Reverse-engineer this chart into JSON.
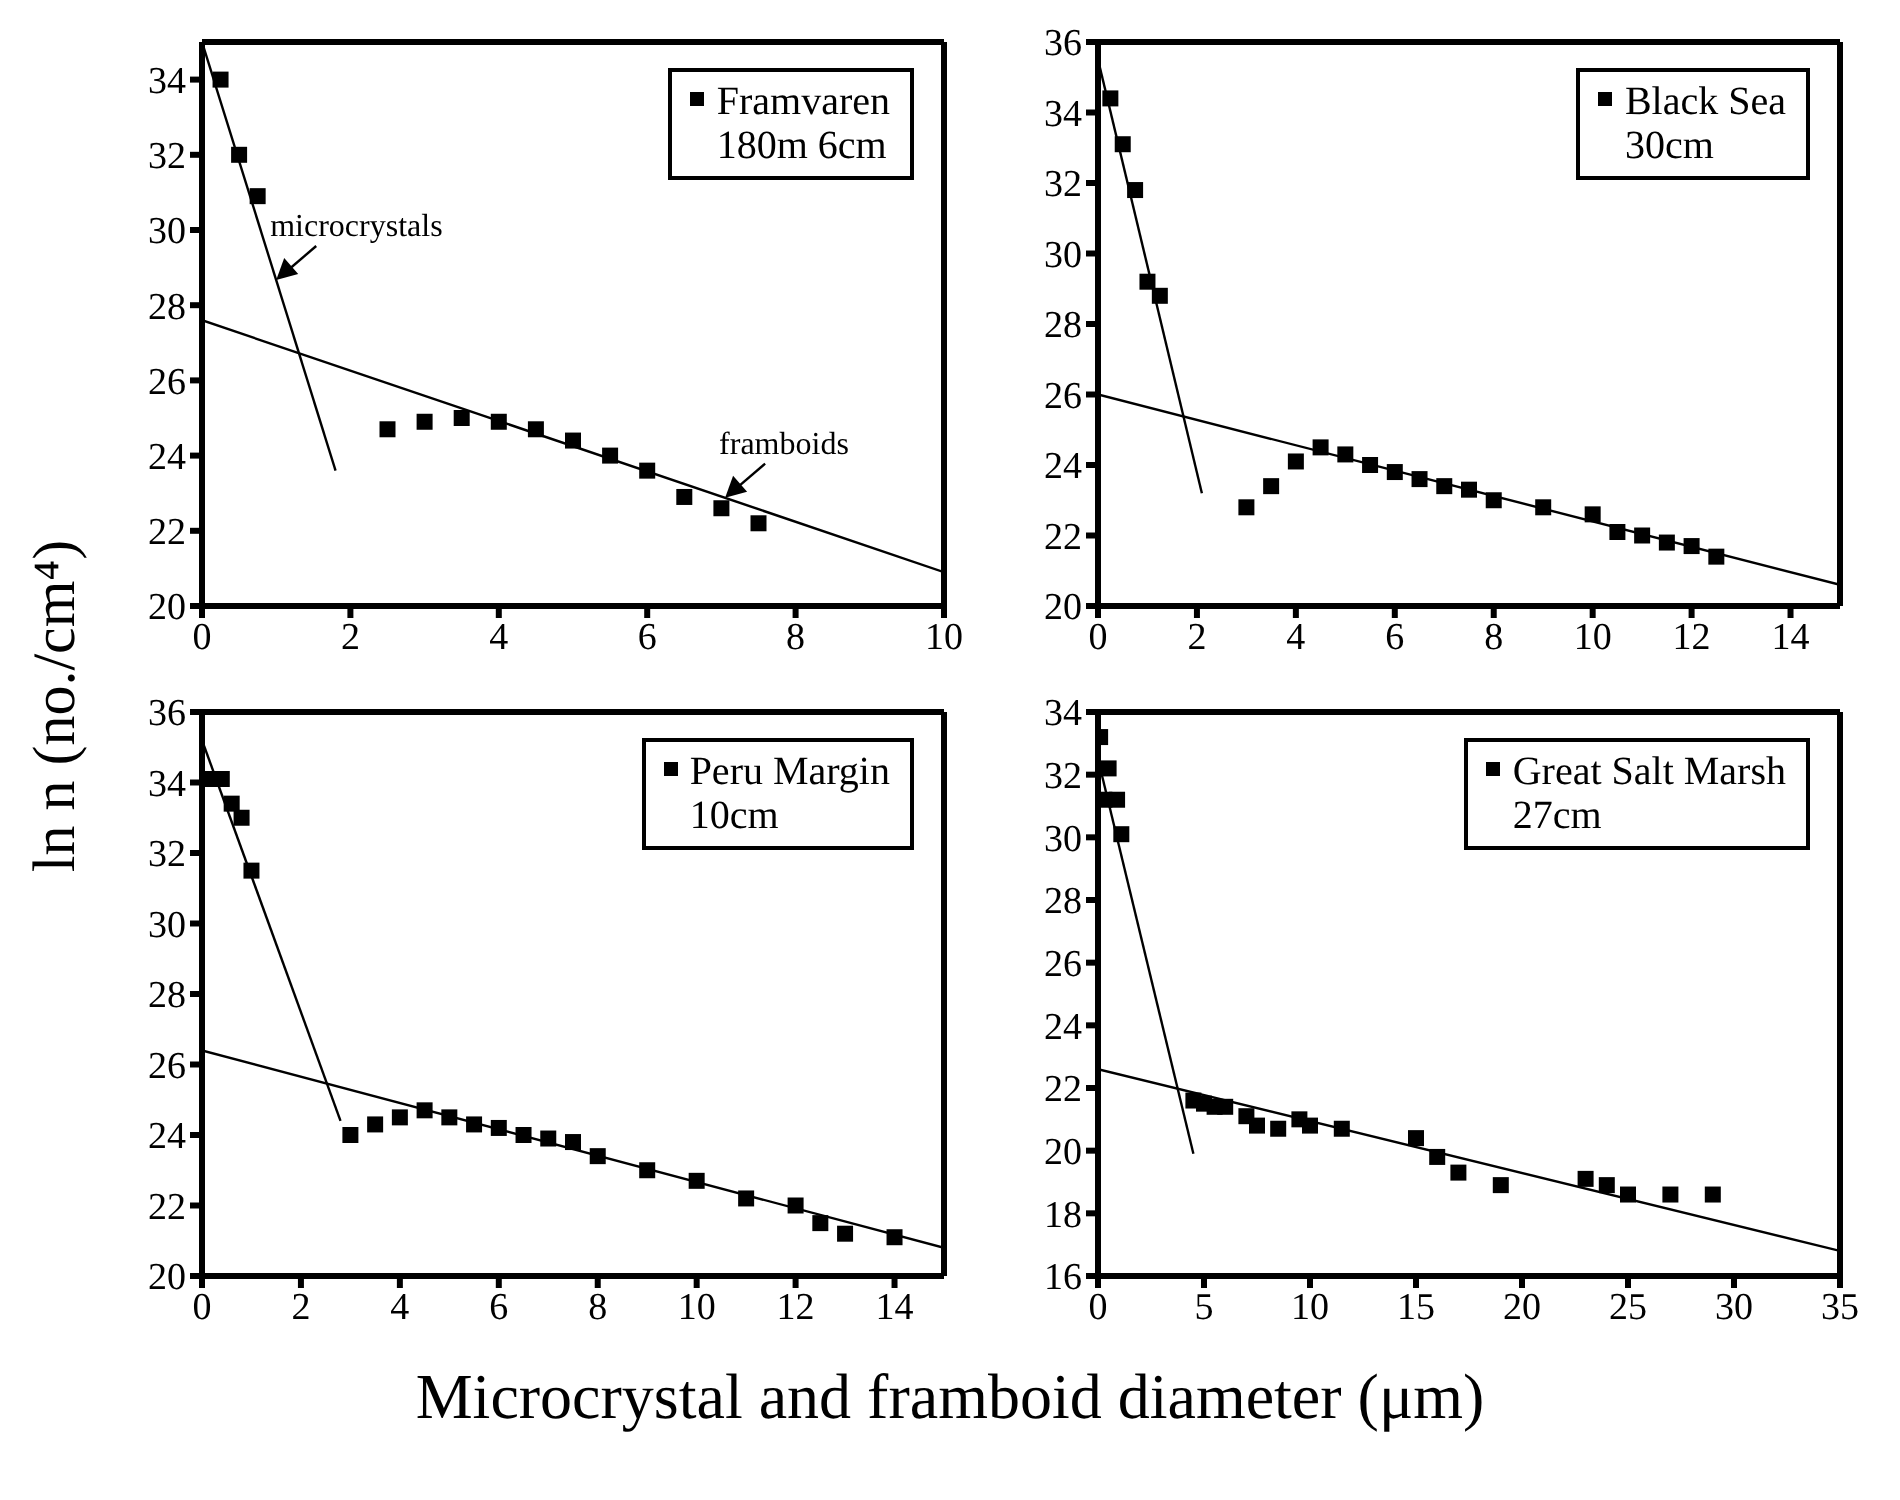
{
  "chart_data": [
    {
      "type": "scatter",
      "xlabel": "Microcrystal and framboid diameter (μm)",
      "ylabel": "ln n (no./cm⁴)",
      "xlim": [
        0,
        10
      ],
      "xticks": [
        0,
        2,
        4,
        6,
        8,
        10
      ],
      "ylim": [
        20,
        35
      ],
      "yticks": [
        20,
        22,
        24,
        26,
        28,
        30,
        32,
        34
      ],
      "legend": "top right",
      "annotations": [
        {
          "text": "microcrystals",
          "x": 1.0,
          "y": 28.67
        },
        {
          "text": "framboids",
          "x": 7.05,
          "y": 22.88
        }
      ],
      "series": [
        {
          "name": "Framvaren\n180m 6cm",
          "color": "#000000",
          "marker": "square",
          "x": [
            0.25,
            0.5,
            0.75,
            2.5,
            3,
            3.5,
            4,
            4.5,
            5,
            5.5,
            6,
            6.5,
            7,
            7.5
          ],
          "values": [
            34.0,
            32.0,
            30.9,
            24.7,
            24.9,
            25.0,
            24.9,
            24.7,
            24.4,
            24.0,
            23.6,
            22.9,
            22.6,
            22.2
          ]
        },
        {
          "type": "line",
          "color": "#000000",
          "line_style": "solid",
          "x": [
            0,
            1.8
          ],
          "values": [
            35.0,
            23.6
          ]
        },
        {
          "type": "line",
          "color": "#000000",
          "line_style": "solid",
          "x": [
            0,
            10
          ],
          "values": [
            27.6,
            20.9
          ]
        }
      ]
    },
    {
      "type": "scatter",
      "xlim": [
        0,
        15
      ],
      "xticks": [
        0,
        2,
        4,
        6,
        8,
        10,
        12,
        14
      ],
      "ylim": [
        20,
        36
      ],
      "yticks": [
        20,
        22,
        24,
        26,
        28,
        30,
        32,
        34,
        36
      ],
      "legend": "top right",
      "series": [
        {
          "name": "Black Sea\n30cm",
          "color": "#000000",
          "marker": "square",
          "x": [
            0.25,
            0.5,
            0.75,
            1,
            1.25,
            3,
            3.5,
            4,
            4.5,
            5,
            5.5,
            6,
            6.5,
            7,
            7.5,
            8,
            9,
            10,
            10.5,
            11,
            11.5,
            12,
            12.5
          ],
          "values": [
            34.4,
            33.1,
            31.8,
            29.2,
            28.8,
            22.8,
            23.4,
            24.1,
            24.5,
            24.3,
            24.0,
            23.8,
            23.6,
            23.4,
            23.3,
            23.0,
            22.8,
            22.6,
            22.1,
            22.0,
            21.8,
            21.7,
            21.4
          ]
        },
        {
          "type": "line",
          "color": "#000000",
          "line_style": "solid",
          "x": [
            0,
            2.1
          ],
          "values": [
            35.5,
            23.2
          ]
        },
        {
          "type": "line",
          "color": "#000000",
          "line_style": "solid",
          "x": [
            0,
            15
          ],
          "values": [
            26.0,
            20.6
          ]
        }
      ]
    },
    {
      "type": "scatter",
      "xlim": [
        0,
        15
      ],
      "xticks": [
        0,
        2,
        4,
        6,
        8,
        10,
        12,
        14
      ],
      "ylim": [
        20,
        36
      ],
      "yticks": [
        20,
        22,
        24,
        26,
        28,
        30,
        32,
        34,
        36
      ],
      "legend": "top right",
      "series": [
        {
          "name": "Peru Margin\n10cm",
          "color": "#000000",
          "marker": "square",
          "x": [
            0.2,
            0.4,
            0.6,
            0.8,
            1.0,
            3.0,
            3.5,
            4,
            4.5,
            5,
            5.5,
            6,
            6.5,
            7,
            7.5,
            8,
            9,
            10,
            11,
            12,
            12.5,
            13,
            14
          ],
          "values": [
            34.1,
            34.1,
            33.4,
            33.0,
            31.5,
            24.0,
            24.3,
            24.5,
            24.7,
            24.5,
            24.3,
            24.2,
            24.0,
            23.9,
            23.8,
            23.4,
            23.0,
            22.7,
            22.2,
            22.0,
            21.5,
            21.2,
            21.1
          ]
        },
        {
          "type": "line",
          "color": "#000000",
          "line_style": "solid",
          "x": [
            0,
            2.8
          ],
          "values": [
            35.2,
            24.4
          ]
        },
        {
          "type": "line",
          "color": "#000000",
          "line_style": "solid",
          "x": [
            0,
            15
          ],
          "values": [
            26.4,
            20.8
          ]
        }
      ]
    },
    {
      "type": "scatter",
      "xlim": [
        0,
        35
      ],
      "xticks": [
        0,
        5,
        10,
        15,
        20,
        25,
        30,
        35
      ],
      "ylim": [
        16,
        34
      ],
      "yticks": [
        16,
        18,
        20,
        22,
        24,
        26,
        28,
        30,
        32,
        34
      ],
      "legend": "top right",
      "series": [
        {
          "name": "Great Salt Marsh\n27cm",
          "color": "#000000",
          "marker": "square",
          "x": [
            0.1,
            0.5,
            0.3,
            0.9,
            1.1,
            4.5,
            5,
            5.5,
            6,
            7,
            7.5,
            8.5,
            9.5,
            10,
            11.5,
            15,
            16,
            17,
            19,
            23,
            24,
            25,
            27,
            29
          ],
          "values": [
            33.2,
            32.2,
            31.2,
            31.2,
            30.1,
            21.6,
            21.5,
            21.4,
            21.4,
            21.1,
            20.8,
            20.7,
            21.0,
            20.8,
            20.7,
            20.4,
            19.8,
            19.3,
            18.9,
            19.1,
            18.9,
            18.6,
            18.6,
            18.6
          ]
        },
        {
          "type": "line",
          "color": "#000000",
          "line_style": "solid",
          "x": [
            0,
            4.5
          ],
          "values": [
            32.5,
            19.9
          ]
        },
        {
          "type": "line",
          "color": "#000000",
          "line_style": "solid",
          "x": [
            0,
            35
          ],
          "values": [
            22.6,
            16.8
          ]
        }
      ]
    }
  ]
}
